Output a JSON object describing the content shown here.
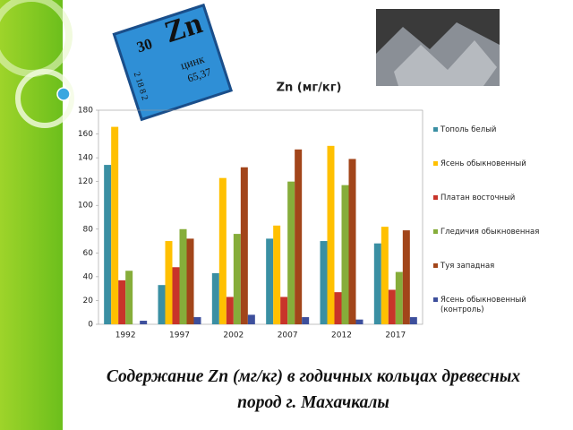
{
  "chart_data": {
    "type": "bar",
    "title": "Zn (мг/кг)",
    "categories": [
      "1992",
      "1997",
      "2002",
      "2007",
      "2012",
      "2017"
    ],
    "series": [
      {
        "name": "Тополь белый",
        "color": "#3a8fa3",
        "values": [
          134,
          33,
          43,
          72,
          70,
          68
        ]
      },
      {
        "name": "Ясень обыкновенный",
        "color": "#ffc000",
        "values": [
          166,
          70,
          123,
          83,
          150,
          82
        ]
      },
      {
        "name": "Платан восточный",
        "color": "#c8342a",
        "values": [
          37,
          48,
          23,
          23,
          27,
          29
        ]
      },
      {
        "name": "Гледичия обыкновенная",
        "color": "#86ad3a",
        "values": [
          45,
          80,
          76,
          120,
          117,
          44
        ]
      },
      {
        "name": "Туя западная",
        "color": "#a2451a",
        "values": [
          0,
          72,
          132,
          147,
          139,
          79
        ]
      },
      {
        "name": "Ясень обыкновенный (контроль)",
        "color": "#3d4f9c",
        "values": [
          3,
          6,
          8,
          6,
          4,
          6
        ]
      }
    ],
    "ylim": [
      0,
      180
    ],
    "yticks": [
      0,
      20,
      40,
      60,
      80,
      100,
      120,
      140,
      160,
      180
    ],
    "grid": false,
    "legend": "right"
  },
  "slide": {
    "caption": "Содержание Zn (мг/кг) в годичных кольцах древесных пород  г. Махачкалы",
    "tile": {
      "number": "30",
      "symbol": "Zn",
      "name": "цинк",
      "mass": "65,37",
      "shells": "2 18 8 2"
    }
  }
}
